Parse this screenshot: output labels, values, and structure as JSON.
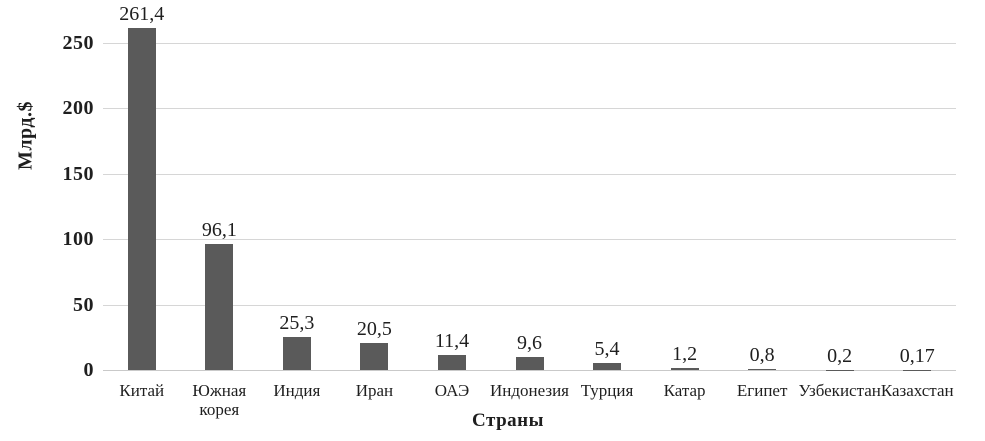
{
  "chart_data": {
    "type": "bar",
    "title": "",
    "xlabel": "Страны",
    "ylabel": "Млрд.$",
    "categories": [
      "Китай",
      "Южная корея",
      "Индия",
      "Иран",
      "ОАЭ",
      "Индонезия",
      "Турция",
      "Катар",
      "Египет",
      "Узбекистан",
      "Казахстан"
    ],
    "category_display": [
      "Китай",
      "Южная\nкорея",
      "Индия",
      "Иран",
      "ОАЭ",
      "Индонезия",
      "Турция",
      "Катар",
      "Египет",
      "Узбекистан",
      "Казахстан"
    ],
    "values": [
      261.4,
      96.1,
      25.3,
      20.5,
      11.4,
      9.6,
      5.4,
      1.2,
      0.8,
      0.2,
      0.17
    ],
    "value_labels": [
      "261,4",
      "96,1",
      "25,3",
      "20,5",
      "11,4",
      "9,6",
      "5,4",
      "1,2",
      "0,8",
      "0,2",
      "0,17"
    ],
    "y_ticks": [
      0,
      50,
      100,
      150,
      200,
      250
    ],
    "y_tick_labels": [
      "0",
      "50",
      "100",
      "150",
      "200",
      "250"
    ],
    "ylim": [
      0,
      250
    ],
    "grid": true,
    "legend": false,
    "bar_color": "#5a5a5a",
    "gridline_color": "#d6d6d6",
    "axis_line_color": "#c9c9c9",
    "text_color": "#1f1f1f",
    "background_color": "#ffffff"
  }
}
